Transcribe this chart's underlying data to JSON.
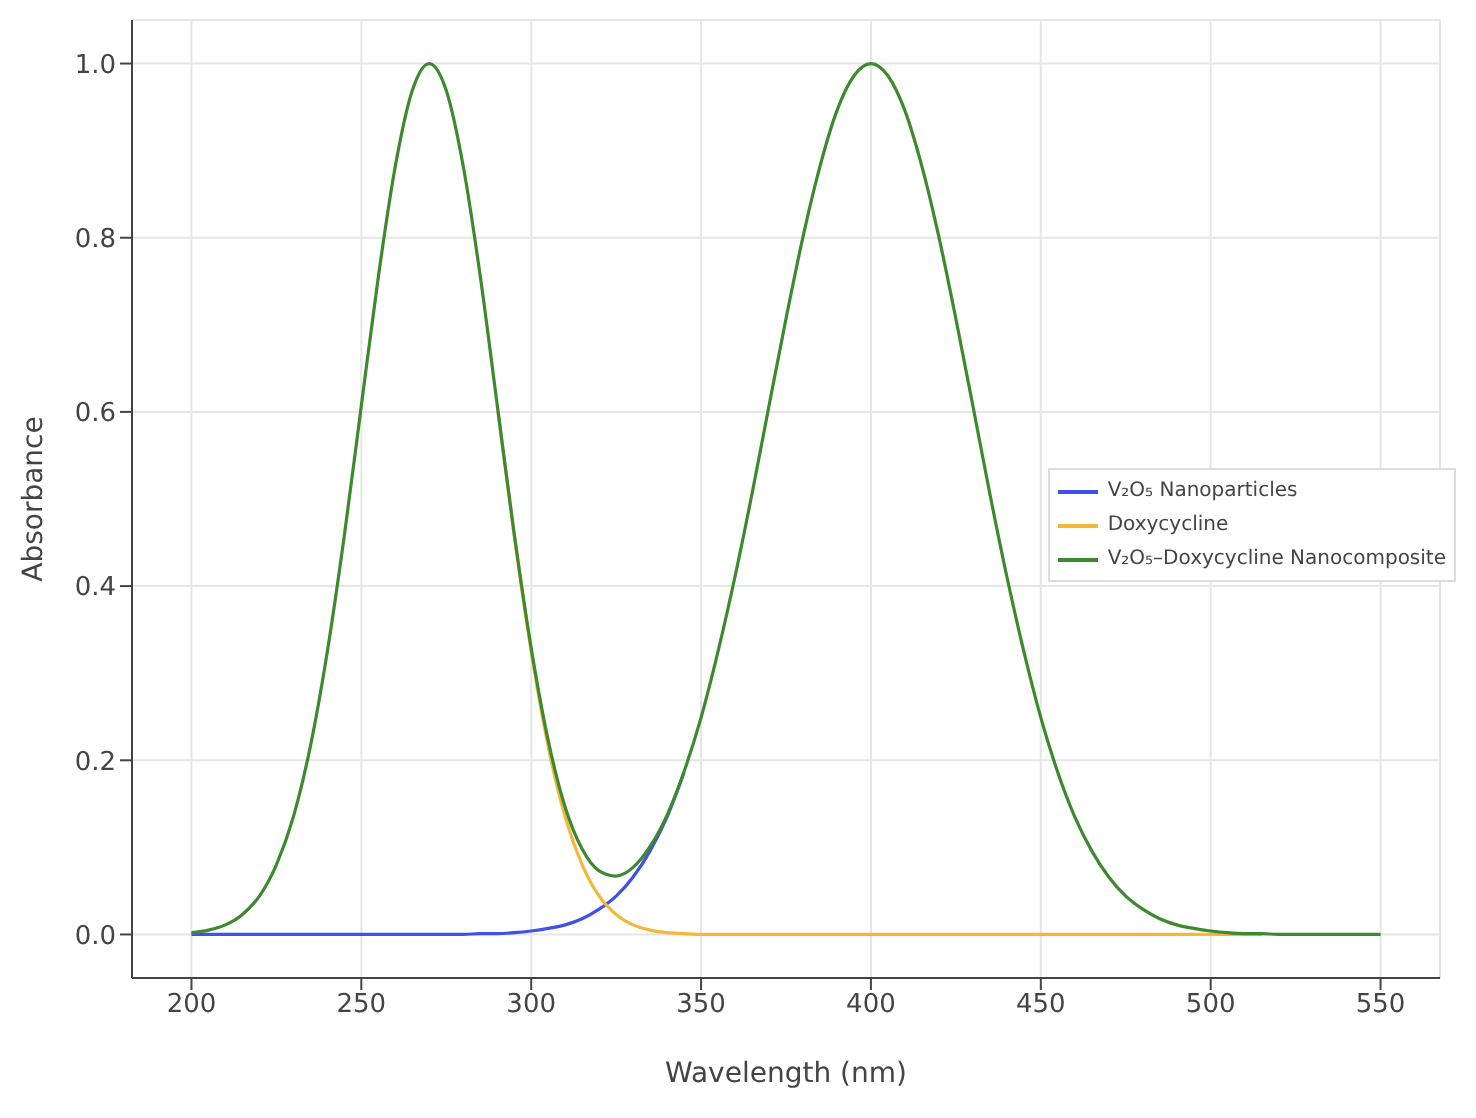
{
  "chart_data": {
    "type": "line",
    "xlabel": "Wavelength (nm)",
    "ylabel": "Absorbance",
    "x": [
      200,
      205,
      210,
      215,
      220,
      225,
      230,
      235,
      240,
      245,
      250,
      255,
      260,
      265,
      270,
      275,
      280,
      285,
      290,
      295,
      300,
      305,
      310,
      315,
      320,
      325,
      330,
      335,
      340,
      345,
      350,
      355,
      360,
      365,
      370,
      375,
      380,
      385,
      390,
      395,
      400,
      405,
      410,
      415,
      420,
      425,
      430,
      435,
      440,
      445,
      450,
      455,
      460,
      465,
      470,
      475,
      480,
      485,
      490,
      495,
      500,
      505,
      510,
      515,
      520,
      525,
      530,
      535,
      540,
      545,
      550
    ],
    "series": [
      {
        "name": "V₂O₅ Nanoparticles",
        "color": "#3f51e8",
        "values": [
          0,
          0,
          0,
          0,
          0,
          0,
          0,
          0,
          0,
          0,
          0,
          0,
          0,
          0,
          0,
          0,
          0,
          0.001,
          0.001,
          0.002,
          0.004,
          0.007,
          0.011,
          0.018,
          0.029,
          0.044,
          0.066,
          0.096,
          0.135,
          0.186,
          null,
          null,
          null,
          null,
          null,
          null,
          null,
          null,
          null,
          null,
          null,
          null,
          null,
          null,
          null,
          null,
          null,
          null,
          null,
          null,
          null,
          null,
          null,
          null,
          null,
          null,
          null,
          null,
          null,
          null,
          null,
          null,
          null,
          null,
          null,
          null,
          null,
          null,
          null,
          null,
          null
        ]
      },
      {
        "name": "Doxycycline",
        "color": "#f5b63c",
        "values": [
          null,
          null,
          null,
          null,
          null,
          null,
          null,
          null,
          null,
          null,
          null,
          null,
          null,
          null,
          null,
          null,
          null,
          null,
          0.607,
          0.458,
          0.325,
          0.216,
          0.135,
          0.08,
          0.044,
          0.023,
          0.011,
          0.005,
          0.002,
          0.001,
          0,
          0,
          0,
          0,
          0,
          0,
          0,
          0,
          0,
          0,
          0,
          0,
          0,
          0,
          0,
          0,
          0,
          0,
          0,
          0,
          0,
          0,
          0,
          0,
          0,
          0,
          0,
          0,
          0,
          0,
          0,
          0,
          0,
          0,
          null,
          null,
          null,
          null,
          null,
          null,
          null
        ]
      },
      {
        "name": "V₂O₅–Doxycycline Nanocomposite",
        "color": "#3d8a2e",
        "values": [
          0.002,
          0.005,
          0.011,
          0.023,
          0.044,
          0.08,
          0.135,
          0.216,
          0.325,
          0.458,
          0.607,
          0.755,
          0.882,
          0.969,
          1,
          0.969,
          0.882,
          0.756,
          0.608,
          0.46,
          0.329,
          0.223,
          0.146,
          0.098,
          0.073,
          0.067,
          0.077,
          0.101,
          0.137,
          0.187,
          0.249,
          0.325,
          0.411,
          0.506,
          0.607,
          0.707,
          0.801,
          0.882,
          0.946,
          0.986,
          1,
          0.986,
          0.946,
          0.882,
          0.801,
          0.707,
          0.607,
          0.506,
          0.411,
          0.325,
          0.249,
          0.186,
          0.135,
          0.096,
          0.066,
          0.044,
          0.029,
          0.018,
          0.011,
          0.007,
          0.004,
          0.002,
          0.001,
          0.001,
          0,
          0,
          0,
          0,
          0,
          0,
          0
        ]
      }
    ],
    "xlim": [
      182.5,
      567.5
    ],
    "xticks": [
      200,
      250,
      300,
      350,
      400,
      450,
      500,
      550
    ],
    "ylim": [
      -0.05,
      1.05
    ],
    "yticks": [
      {
        "value": 0,
        "label": "0.0"
      },
      {
        "value": 0.2,
        "label": "0.2"
      },
      {
        "value": 0.4,
        "label": "0.4"
      },
      {
        "value": 0.6,
        "label": "0.6"
      },
      {
        "value": 0.8,
        "label": "0.8"
      },
      {
        "value": 1,
        "label": "1.0"
      }
    ],
    "grid": true,
    "legend": "right",
    "marker": "none",
    "line_style": "solid"
  }
}
